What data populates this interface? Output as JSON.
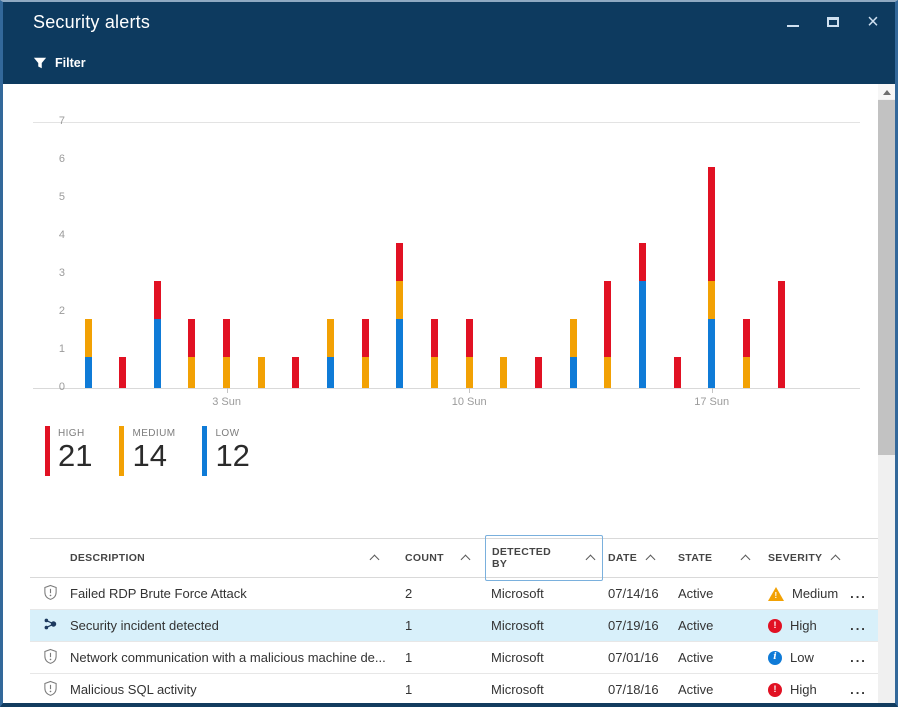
{
  "window": {
    "title": "Security alerts"
  },
  "toolbar": {
    "filter_label": "Filter"
  },
  "chart_data": {
    "type": "bar",
    "stacked": true,
    "ylim": [
      0,
      7
    ],
    "y_ticks": [
      0,
      1,
      2,
      3,
      4,
      5,
      6,
      7
    ],
    "grid": "top-and-baseline-only",
    "legend_position": "below-left",
    "series_names": [
      "LOW",
      "MEDIUM",
      "HIGH"
    ],
    "colors": {
      "high": "#e11123",
      "medium": "#f2a104",
      "low": "#0f7bd7"
    },
    "bars": [
      {
        "low": 1,
        "medium": 1,
        "high": 0
      },
      {
        "low": 0,
        "medium": 0,
        "high": 1
      },
      {
        "low": 2,
        "medium": 0,
        "high": 1
      },
      {
        "low": 0,
        "medium": 1,
        "high": 1
      },
      {
        "low": 0,
        "medium": 1,
        "high": 1
      },
      {
        "low": 0,
        "medium": 1,
        "high": 0
      },
      {
        "low": 0,
        "medium": 0,
        "high": 1
      },
      {
        "low": 1,
        "medium": 1,
        "high": 0
      },
      {
        "low": 0,
        "medium": 1,
        "high": 1
      },
      {
        "low": 2,
        "medium": 1,
        "high": 1
      },
      {
        "low": 0,
        "medium": 1,
        "high": 1
      },
      {
        "low": 0,
        "medium": 1,
        "high": 1
      },
      {
        "low": 0,
        "medium": 1,
        "high": 0
      },
      {
        "low": 0,
        "medium": 0,
        "high": 1
      },
      {
        "low": 1,
        "medium": 1,
        "high": 0
      },
      {
        "low": 0,
        "medium": 1,
        "high": 2
      },
      {
        "low": 3,
        "medium": 0,
        "high": 1
      },
      {
        "low": 0,
        "medium": 0,
        "high": 1
      },
      {
        "low": 2,
        "medium": 1,
        "high": 3
      },
      {
        "low": 0,
        "medium": 1,
        "high": 1
      },
      {
        "low": 0,
        "medium": 0,
        "high": 3
      }
    ],
    "x_ticks": [
      {
        "label": "3 Sun",
        "bar_index": 4
      },
      {
        "label": "10 Sun",
        "bar_index": 11
      },
      {
        "label": "17 Sun",
        "bar_index": 18
      }
    ]
  },
  "legend": {
    "items": [
      {
        "label": "HIGH",
        "value": "21",
        "color": "#e11123"
      },
      {
        "label": "MEDIUM",
        "value": "14",
        "color": "#f2a104"
      },
      {
        "label": "LOW",
        "value": "12",
        "color": "#0f7bd7"
      }
    ]
  },
  "table": {
    "columns": [
      {
        "key": "icon",
        "label": "",
        "sortable": false,
        "focused": false
      },
      {
        "key": "description",
        "label": "DESCRIPTION",
        "sortable": true,
        "focused": false
      },
      {
        "key": "count",
        "label": "COUNT",
        "sortable": true,
        "focused": false
      },
      {
        "key": "detected_by",
        "label": "DETECTED BY",
        "sortable": true,
        "focused": true
      },
      {
        "key": "date",
        "label": "DATE",
        "sortable": true,
        "focused": false
      },
      {
        "key": "state",
        "label": "STATE",
        "sortable": true,
        "focused": false
      },
      {
        "key": "severity",
        "label": "SEVERITY",
        "sortable": true,
        "focused": false
      },
      {
        "key": "actions",
        "label": "",
        "sortable": false,
        "focused": false
      }
    ],
    "rows": [
      {
        "icon": "shield-alert",
        "description": "Failed RDP Brute Force Attack",
        "count": "2",
        "detected_by": "Microsoft",
        "date": "07/14/16",
        "state": "Active",
        "severity": "Medium",
        "severity_level": "medium",
        "selected": false,
        "actions": "..."
      },
      {
        "icon": "incident",
        "description": "Security incident detected",
        "count": "1",
        "detected_by": "Microsoft",
        "date": "07/19/16",
        "state": "Active",
        "severity": "High",
        "severity_level": "high",
        "selected": true,
        "actions": "..."
      },
      {
        "icon": "shield-alert",
        "description": "Network communication with a malicious machine de...",
        "count": "1",
        "detected_by": "Microsoft",
        "date": "07/01/16",
        "state": "Active",
        "severity": "Low",
        "severity_level": "low",
        "selected": false,
        "actions": "..."
      },
      {
        "icon": "shield-alert",
        "description": "Malicious SQL activity",
        "count": "1",
        "detected_by": "Microsoft",
        "date": "07/18/16",
        "state": "Active",
        "severity": "High",
        "severity_level": "high",
        "selected": false,
        "actions": "..."
      }
    ]
  }
}
